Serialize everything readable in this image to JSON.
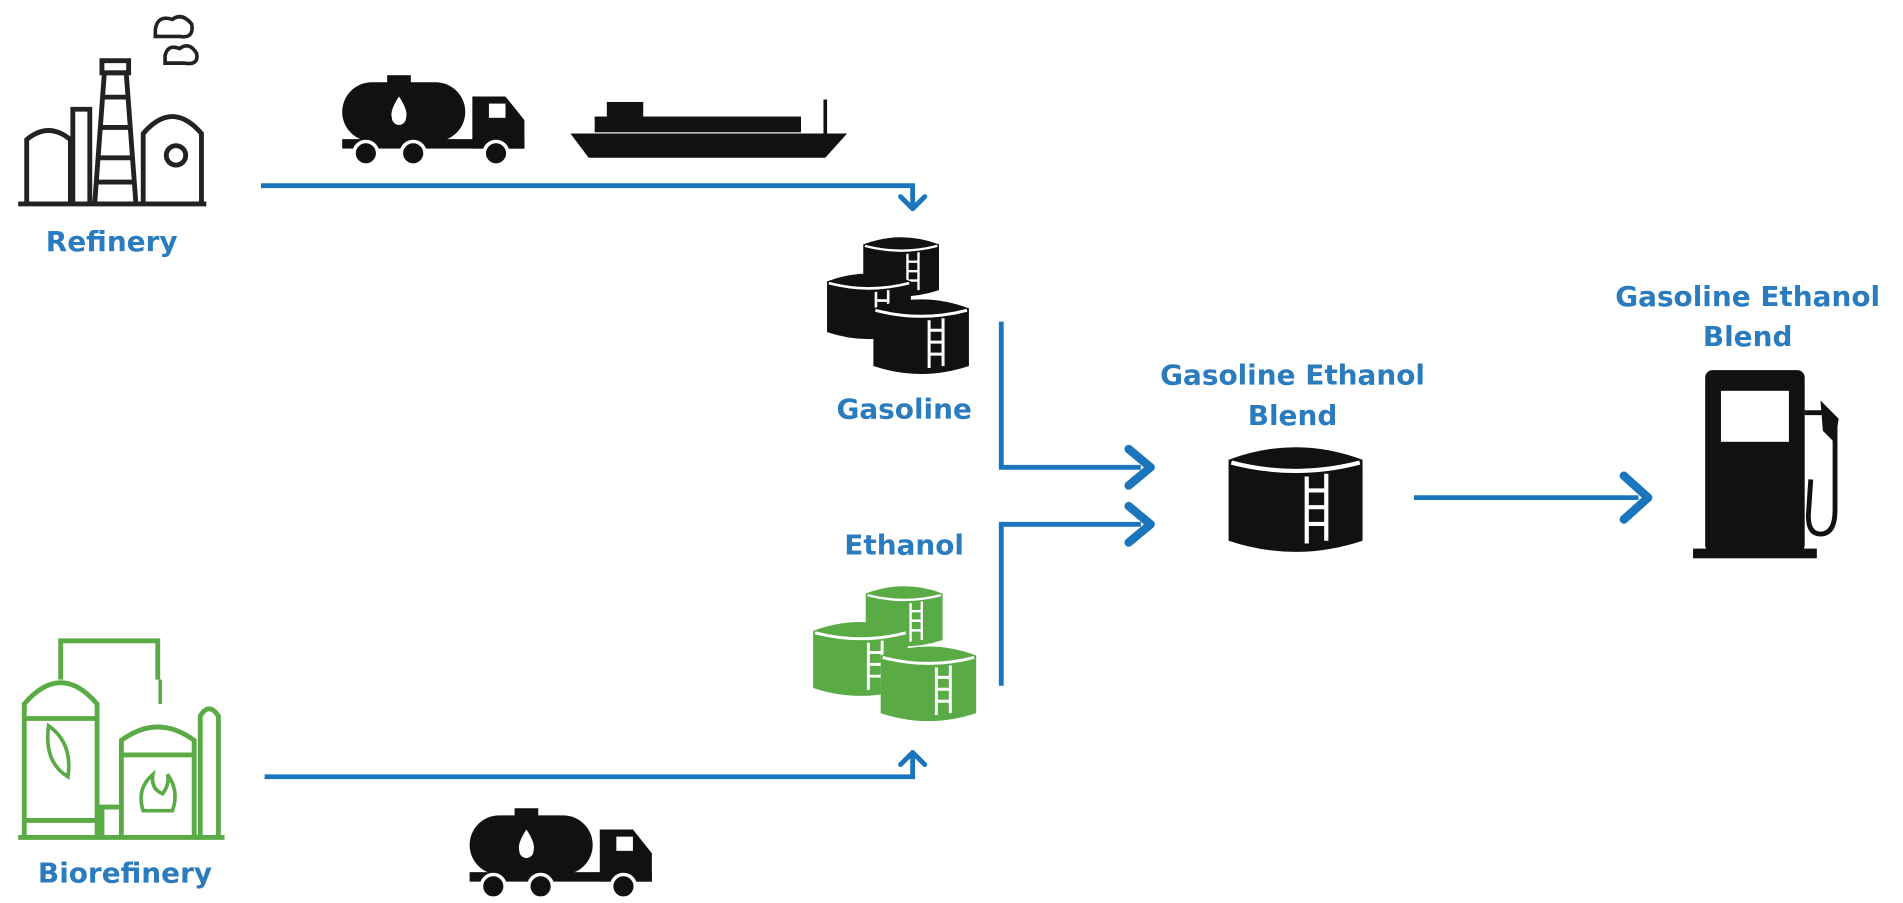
{
  "nodes": [
    {
      "label": [
        "Refinery"
      ]
    },
    {
      "label": [
        "Biorefinery"
      ]
    },
    {
      "label": [
        "Gasoline"
      ]
    },
    {
      "label": [
        "Ethanol"
      ]
    },
    {
      "label": [
        "Gasoline Ethanol",
        "Blend"
      ]
    },
    {
      "label": [
        "Gasoline Ethanol",
        "Blend"
      ]
    }
  ]
}
